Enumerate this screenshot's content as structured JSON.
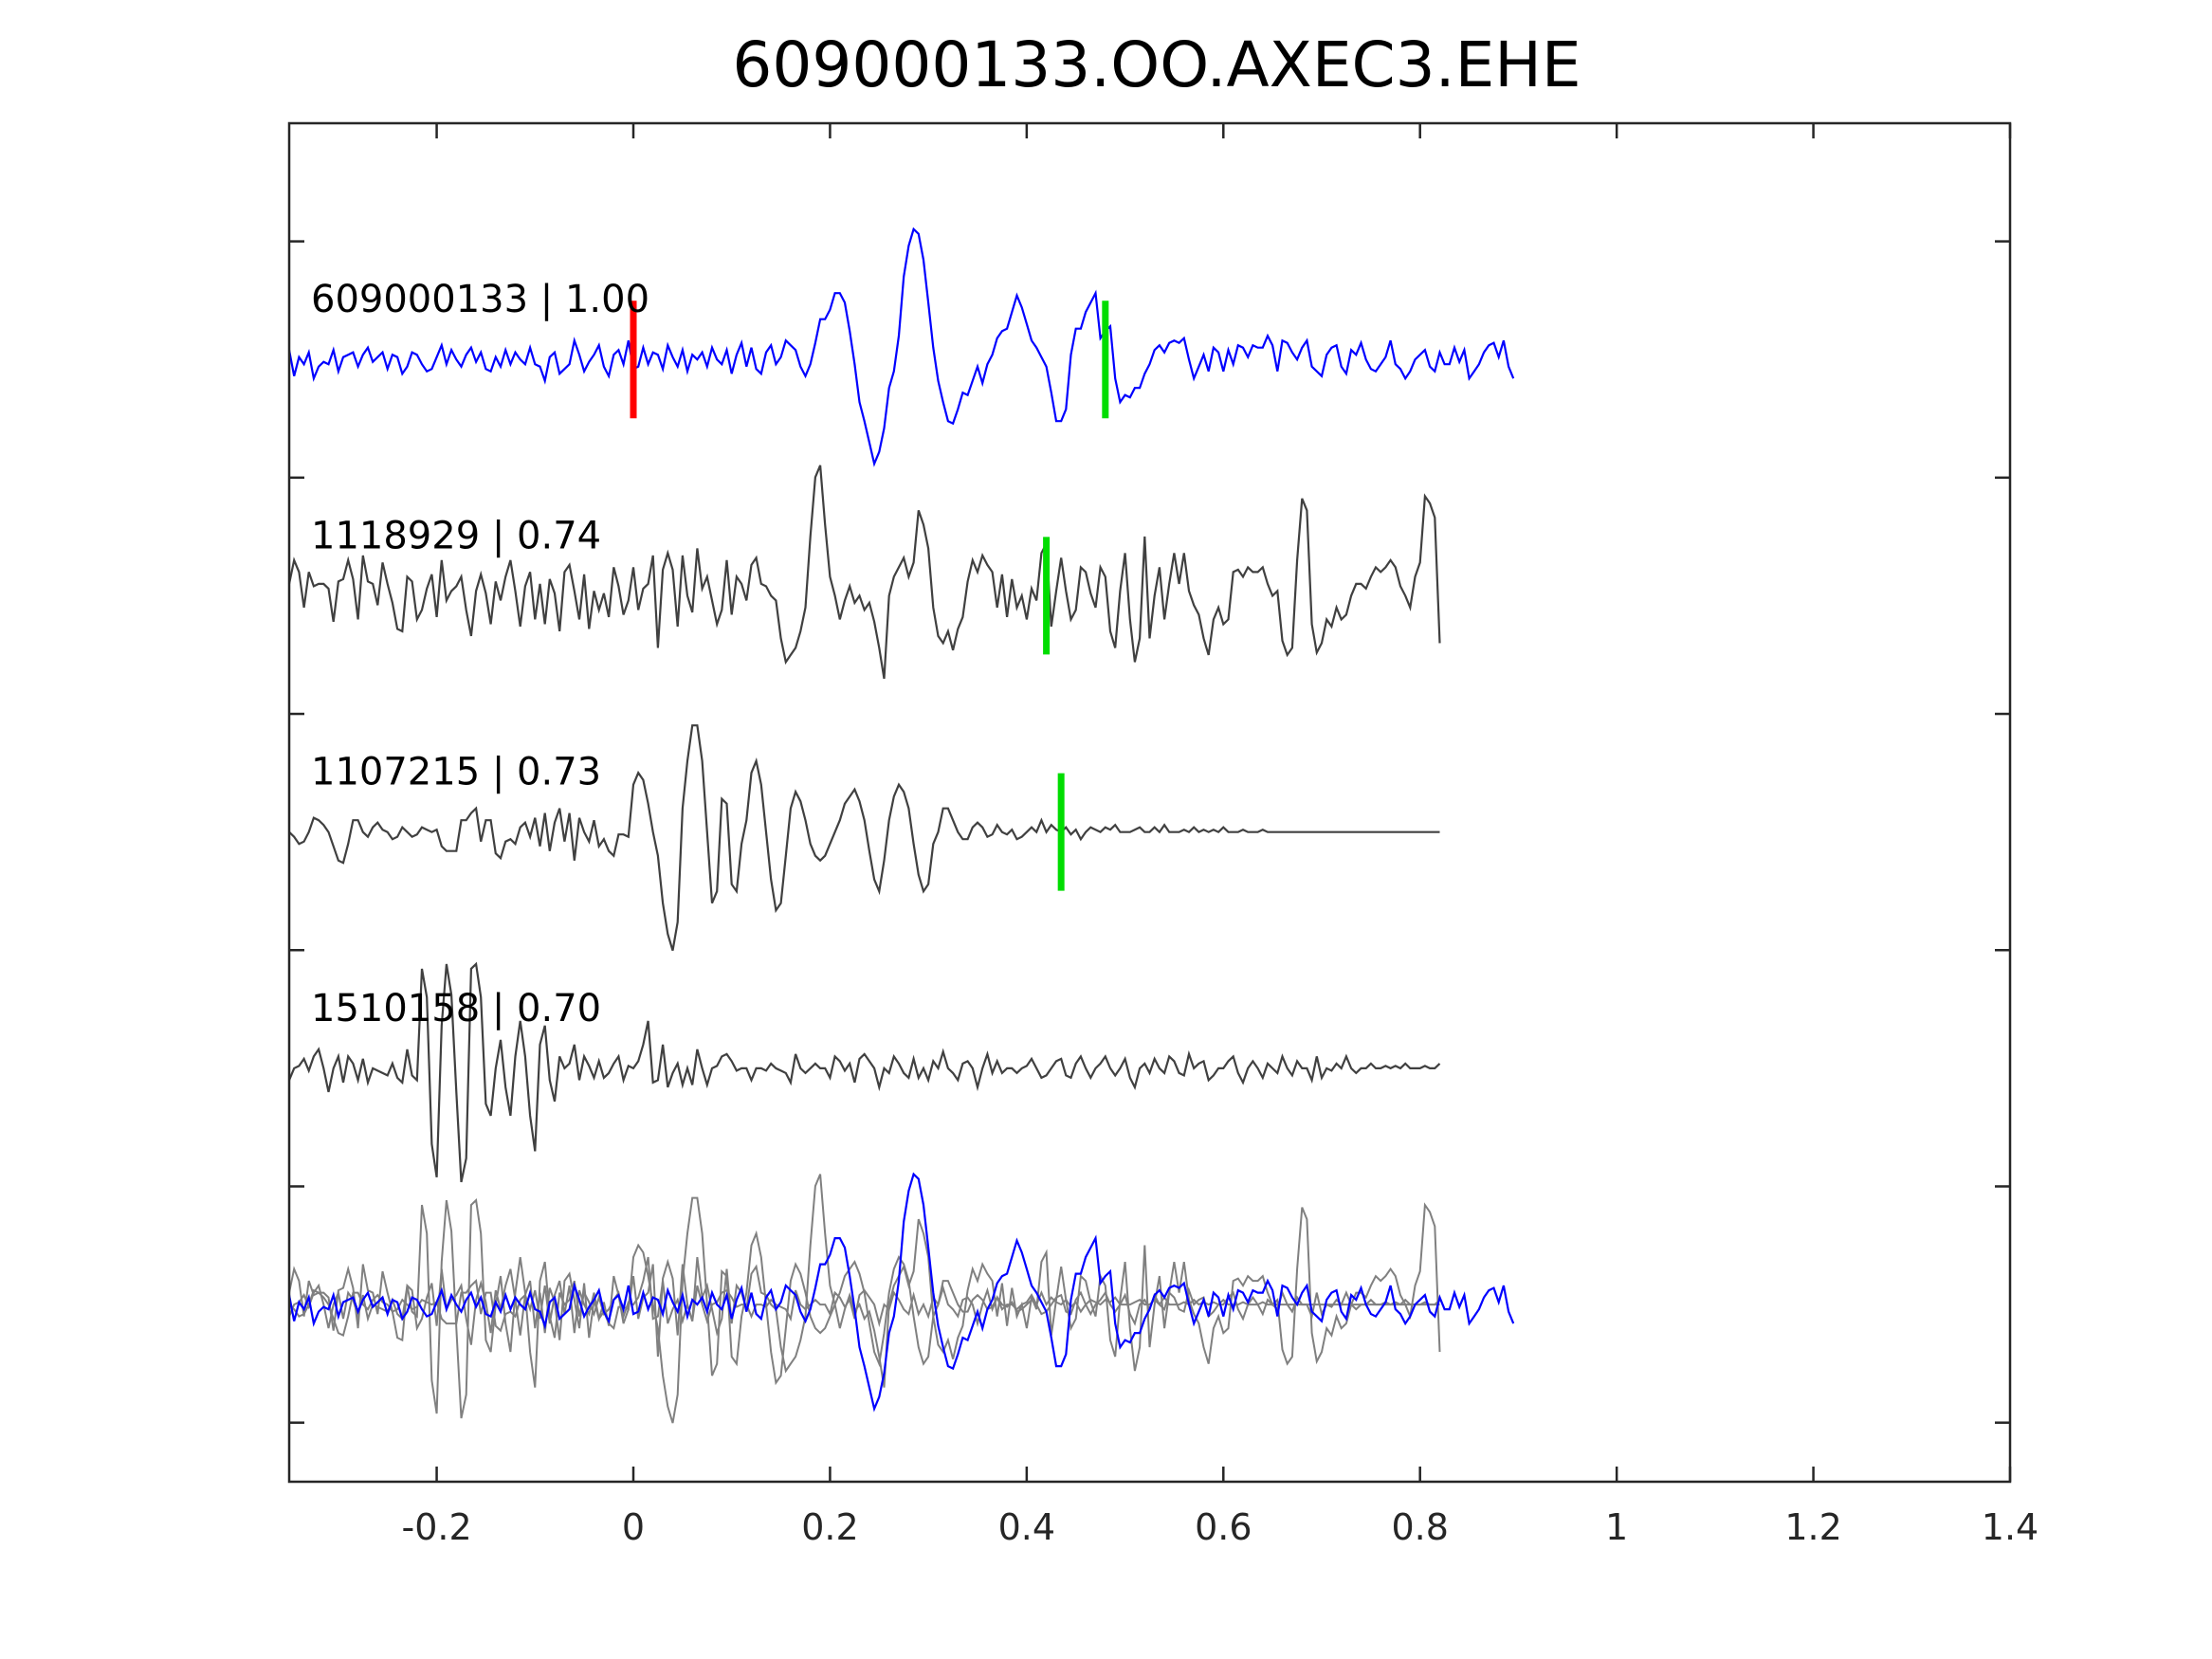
{
  "chart_data": {
    "type": "line",
    "title": "609000133.OO.AXEC3.EHE",
    "xlabel": "",
    "ylabel": "",
    "xlim": [
      -0.35,
      1.4
    ],
    "x_ticks": [
      -0.2,
      0,
      0.2,
      0.4,
      0.6,
      0.8,
      1,
      1.2,
      1.4
    ],
    "x_tick_labels": [
      "-0.2",
      "0",
      "0.2",
      "0.4",
      "0.6",
      "0.8",
      "1",
      "1.2",
      "1.4"
    ],
    "ylim": [
      0,
      5.75
    ],
    "y_ticks": [
      0.25,
      1.25,
      2.25,
      3.25,
      4.25,
      5.25
    ],
    "y_tick_labels": [
      "",
      "",
      "",
      "",
      "",
      ""
    ],
    "grid": false,
    "sample_dt": 0.005,
    "colors": {
      "target": "#0000ff",
      "match": "#404040",
      "overlay_match": "#808080",
      "red_pick": "#ff0000",
      "green_pick": "#00dd00"
    },
    "series": [
      {
        "name": "609000133 | 1.00",
        "baseline": 4.75,
        "color": "#0000ff",
        "role": "target",
        "picks": [
          {
            "t": 0.0,
            "color": "#ff0000"
          },
          {
            "t": 0.48,
            "color": "#00dd00"
          }
        ],
        "y": [
          0.04,
          -0.07,
          0.01,
          -0.02,
          0.03,
          -0.08,
          -0.03,
          -0.01,
          -0.02,
          0.04,
          -0.05,
          0.01,
          0.02,
          0.03,
          -0.03,
          0.02,
          0.05,
          -0.01,
          0.01,
          0.03,
          -0.04,
          0.02,
          0.01,
          -0.06,
          -0.03,
          0.03,
          0.02,
          -0.02,
          -0.05,
          -0.04,
          0.01,
          0.06,
          -0.02,
          0.04,
          0.0,
          -0.03,
          0.02,
          0.05,
          -0.01,
          0.03,
          -0.04,
          -0.05,
          0.01,
          -0.03,
          0.04,
          -0.02,
          0.03,
          0.0,
          -0.02,
          0.05,
          -0.02,
          -0.03,
          -0.09,
          0.01,
          0.03,
          -0.06,
          -0.04,
          -0.02,
          0.08,
          0.02,
          -0.05,
          -0.01,
          0.02,
          0.06,
          -0.03,
          -0.07,
          0.02,
          0.04,
          -0.02,
          0.08,
          -0.04,
          -0.03,
          0.05,
          -0.02,
          0.03,
          0.02,
          -0.04,
          0.06,
          0.01,
          -0.03,
          0.04,
          -0.05,
          0.02,
          0.0,
          0.03,
          -0.03,
          0.05,
          0.0,
          -0.02,
          0.04,
          -0.06,
          0.02,
          0.07,
          -0.03,
          0.05,
          -0.04,
          -0.06,
          0.03,
          0.06,
          -0.02,
          0.01,
          0.08,
          0.06,
          0.04,
          -0.03,
          -0.07,
          -0.02,
          0.07,
          0.17,
          0.17,
          0.21,
          0.28,
          0.28,
          0.24,
          0.12,
          -0.02,
          -0.18,
          -0.26,
          -0.35,
          -0.44,
          -0.39,
          -0.29,
          -0.12,
          -0.05,
          0.1,
          0.35,
          0.48,
          0.55,
          0.53,
          0.42,
          0.24,
          0.05,
          -0.09,
          -0.18,
          -0.26,
          -0.27,
          -0.21,
          -0.14,
          -0.15,
          -0.09,
          -0.03,
          -0.1,
          -0.02,
          0.02,
          0.09,
          0.12,
          0.13,
          0.2,
          0.27,
          0.22,
          0.15,
          0.08,
          0.05,
          0.01,
          -0.03,
          -0.14,
          -0.26,
          -0.26,
          -0.21,
          0.02,
          0.13,
          0.13,
          0.2,
          0.24,
          0.28,
          0.09,
          0.12,
          0.14,
          -0.08,
          -0.18,
          -0.15,
          -0.16,
          -0.12,
          -0.12,
          -0.06,
          -0.02,
          0.04,
          0.06,
          0.03,
          0.07,
          0.08,
          0.07,
          0.09,
          0.0,
          -0.08,
          -0.03,
          0.02,
          -0.05,
          0.05,
          0.03,
          -0.05,
          0.04,
          -0.02,
          0.06,
          0.05,
          0.01,
          0.06,
          0.05,
          0.05,
          0.1,
          0.06,
          -0.05,
          0.08,
          0.07,
          0.03,
          0.0,
          0.05,
          0.08,
          -0.03,
          -0.05,
          -0.07,
          0.02,
          0.05,
          0.06,
          -0.03,
          -0.06,
          0.04,
          0.02,
          0.07,
          0.0,
          -0.04,
          -0.05,
          -0.02,
          0.01,
          0.08,
          -0.02,
          -0.04,
          -0.08,
          -0.05,
          0.0,
          0.02,
          0.04,
          -0.03,
          -0.05,
          0.03,
          -0.02,
          -0.02,
          0.05,
          -0.01,
          0.04,
          -0.08,
          -0.05,
          -0.02,
          0.03,
          0.06,
          0.07,
          0.01,
          0.08,
          -0.03,
          -0.08
        ]
      },
      {
        "name": "1118929 | 0.74",
        "baseline": 3.75,
        "color": "#404040",
        "role": "match",
        "picks": [
          {
            "t": 0.42,
            "color": "#00dd00"
          }
        ],
        "y": [
          0.05,
          0.15,
          0.1,
          -0.05,
          0.1,
          0.04,
          0.05,
          0.05,
          0.03,
          -0.11,
          0.06,
          0.07,
          0.15,
          0.07,
          -0.1,
          0.17,
          0.06,
          0.05,
          -0.04,
          0.14,
          0.05,
          -0.03,
          -0.14,
          -0.15,
          0.08,
          0.06,
          -0.1,
          -0.06,
          0.03,
          0.09,
          -0.09,
          0.15,
          -0.02,
          0.02,
          0.04,
          0.08,
          -0.06,
          -0.17,
          0.02,
          0.09,
          0.01,
          -0.12,
          0.06,
          -0.02,
          0.08,
          0.15,
          0.02,
          -0.13,
          0.04,
          0.1,
          -0.1,
          0.05,
          -0.12,
          0.07,
          0.01,
          -0.15,
          0.1,
          0.13,
          0.02,
          -0.1,
          0.09,
          -0.14,
          0.02,
          -0.06,
          0.01,
          -0.09,
          0.12,
          0.04,
          -0.08,
          -0.02,
          0.12,
          -0.06,
          0.03,
          0.05,
          0.17,
          -0.22,
          0.11,
          0.18,
          0.11,
          -0.13,
          0.17,
          0.0,
          -0.07,
          0.2,
          0.03,
          0.08,
          -0.02,
          -0.12,
          -0.06,
          0.15,
          -0.08,
          0.08,
          0.05,
          -0.02,
          0.13,
          0.16,
          0.05,
          0.04,
          0.0,
          -0.02,
          -0.18,
          -0.28,
          -0.25,
          -0.22,
          -0.15,
          -0.05,
          0.25,
          0.5,
          0.55,
          0.3,
          0.08,
          0.0,
          -0.1,
          -0.02,
          0.04,
          -0.03,
          0.0,
          -0.06,
          -0.03,
          -0.11,
          -0.22,
          -0.35,
          0.0,
          0.08,
          0.12,
          0.16,
          0.08,
          0.14,
          0.36,
          0.3,
          0.2,
          -0.05,
          -0.17,
          -0.2,
          -0.15,
          -0.23,
          -0.14,
          -0.09,
          0.06,
          0.15,
          0.1,
          0.17,
          0.13,
          0.1,
          -0.05,
          0.09,
          -0.09,
          0.07,
          -0.05,
          0.0,
          -0.1,
          0.03,
          -0.02,
          0.18,
          0.22,
          -0.13,
          0.02,
          0.16,
          0.02,
          -0.1,
          -0.06,
          0.12,
          0.1,
          0.01,
          -0.05,
          0.12,
          0.08,
          -0.15,
          -0.22,
          0.02,
          0.18,
          -0.1,
          -0.28,
          -0.18,
          0.25,
          -0.18,
          0.0,
          0.12,
          -0.1,
          0.05,
          0.18,
          0.05,
          0.18,
          0.02,
          -0.04,
          -0.08,
          -0.18,
          -0.25,
          -0.1,
          -0.05,
          -0.12,
          -0.1,
          0.1,
          0.11,
          0.08,
          0.12,
          0.1,
          0.1,
          0.12,
          0.05,
          0.0,
          0.02,
          -0.19,
          -0.25,
          -0.22,
          0.15,
          0.41,
          0.36,
          -0.12,
          -0.24,
          -0.2,
          -0.1,
          -0.13,
          -0.05,
          -0.1,
          -0.08,
          0.0,
          0.05,
          0.05,
          0.03,
          0.08,
          0.12,
          0.1,
          0.12,
          0.15,
          0.12,
          0.04,
          0.0,
          -0.05,
          0.08,
          0.14,
          0.42,
          0.39,
          0.33,
          -0.2
        ]
      },
      {
        "name": "1107215 | 0.73",
        "baseline": 2.75,
        "color": "#404040",
        "role": "match",
        "picks": [
          {
            "t": 0.435,
            "color": "#00dd00"
          }
        ],
        "y": [
          0.0,
          -0.02,
          -0.05,
          -0.04,
          0.0,
          0.06,
          0.05,
          0.03,
          0.0,
          -0.06,
          -0.12,
          -0.13,
          -0.05,
          0.05,
          0.05,
          0.0,
          -0.02,
          0.02,
          0.04,
          0.01,
          0.0,
          -0.03,
          -0.02,
          0.02,
          0.0,
          -0.02,
          -0.01,
          0.02,
          0.01,
          0.0,
          0.01,
          -0.06,
          -0.08,
          -0.08,
          -0.08,
          0.05,
          0.05,
          0.08,
          0.1,
          -0.04,
          0.05,
          0.05,
          -0.09,
          -0.11,
          -0.04,
          -0.03,
          -0.05,
          0.02,
          0.04,
          -0.02,
          0.06,
          -0.06,
          0.08,
          -0.08,
          0.04,
          0.1,
          -0.04,
          0.08,
          -0.12,
          0.06,
          0.0,
          -0.04,
          0.05,
          -0.06,
          -0.03,
          -0.08,
          -0.1,
          -0.01,
          -0.01,
          -0.02,
          0.2,
          0.25,
          0.22,
          0.12,
          0.0,
          -0.1,
          -0.3,
          -0.43,
          -0.5,
          -0.38,
          0.1,
          0.3,
          0.45,
          0.45,
          0.3,
          0.0,
          -0.3,
          -0.25,
          0.14,
          0.12,
          -0.22,
          -0.25,
          -0.05,
          0.05,
          0.25,
          0.3,
          0.2,
          0.0,
          -0.2,
          -0.33,
          -0.3,
          -0.1,
          0.1,
          0.17,
          0.13,
          0.05,
          -0.05,
          -0.1,
          -0.12,
          -0.1,
          -0.05,
          0.0,
          0.05,
          0.12,
          0.15,
          0.18,
          0.13,
          0.05,
          -0.08,
          -0.2,
          -0.25,
          -0.12,
          0.05,
          0.15,
          0.2,
          0.17,
          0.1,
          -0.05,
          -0.18,
          -0.25,
          -0.22,
          -0.05,
          0.0,
          0.1,
          0.1,
          0.05,
          0.0,
          -0.03,
          -0.03,
          0.02,
          0.04,
          0.02,
          -0.02,
          -0.01,
          0.03,
          0.0,
          -0.01,
          0.01,
          -0.03,
          -0.02,
          0.0,
          0.02,
          0.0,
          0.05,
          0.0,
          0.03,
          0.01,
          0.0,
          0.02,
          -0.01,
          0.01,
          -0.03,
          0.0,
          0.02,
          0.01,
          0.0,
          0.02,
          0.01,
          0.03,
          0.0,
          0.0,
          0.0,
          0.01,
          0.02,
          0.0,
          0.0,
          0.02,
          0.0,
          0.03,
          0.0,
          0.0,
          0.0,
          0.01,
          0.0,
          0.02,
          0.0,
          0.01,
          0.0,
          0.01,
          0.0,
          0.02,
          0.0,
          0.0,
          0.0,
          0.01,
          0.0,
          0.0,
          0.0,
          0.01,
          0.0,
          0.0,
          0.0,
          0.0,
          0.0,
          0.0,
          0.0,
          0.0,
          0.0,
          0.0,
          0.0,
          0.0,
          0.0,
          0.0,
          0.0,
          0.0,
          0.0,
          0.0,
          0.0,
          0.0,
          0.0,
          0.0,
          0.0,
          0.0,
          0.0,
          0.0,
          0.0,
          0.0,
          0.0,
          0.0,
          0.0,
          0.0,
          0.0,
          0.0,
          0.0,
          0.0
        ]
      },
      {
        "name": "1510158 | 0.70",
        "baseline": 1.75,
        "color": "#404040",
        "role": "match",
        "picks": [],
        "y": [
          -0.05,
          0.0,
          0.01,
          0.04,
          -0.01,
          0.05,
          0.08,
          0.0,
          -0.1,
          0.0,
          0.05,
          -0.06,
          0.05,
          0.02,
          -0.05,
          0.04,
          -0.06,
          0.0,
          -0.01,
          -0.02,
          -0.03,
          0.02,
          -0.04,
          -0.06,
          0.08,
          -0.03,
          -0.05,
          0.42,
          0.3,
          -0.32,
          -0.46,
          0.18,
          0.44,
          0.31,
          -0.1,
          -0.48,
          -0.38,
          0.42,
          0.44,
          0.3,
          -0.15,
          -0.2,
          0.0,
          0.12,
          -0.08,
          -0.2,
          0.05,
          0.2,
          0.05,
          -0.2,
          -0.35,
          0.1,
          0.18,
          -0.05,
          -0.14,
          0.05,
          0.0,
          0.02,
          0.1,
          -0.05,
          0.05,
          0.01,
          -0.04,
          0.03,
          -0.04,
          -0.02,
          0.02,
          0.05,
          -0.05,
          0.01,
          0.0,
          0.03,
          0.1,
          0.2,
          -0.06,
          -0.05,
          0.1,
          -0.08,
          -0.02,
          0.02,
          -0.07,
          0.0,
          -0.07,
          0.08,
          0.0,
          -0.07,
          0.0,
          0.01,
          0.05,
          0.06,
          0.03,
          -0.01,
          0.0,
          0.0,
          -0.05,
          0.0,
          0.0,
          -0.01,
          0.02,
          0.0,
          -0.01,
          -0.02,
          -0.06,
          0.06,
          0.0,
          -0.02,
          0.0,
          0.02,
          0.0,
          0.0,
          -0.04,
          0.05,
          0.03,
          -0.01,
          0.02,
          -0.06,
          0.04,
          0.06,
          0.03,
          0.0,
          -0.08,
          0.0,
          -0.02,
          0.05,
          0.02,
          -0.02,
          -0.04,
          0.04,
          -0.04,
          0.0,
          -0.05,
          0.03,
          0.0,
          0.07,
          0.0,
          -0.02,
          -0.05,
          0.02,
          0.03,
          0.0,
          -0.08,
          0.0,
          0.06,
          -0.02,
          0.03,
          -0.02,
          0.0,
          0.0,
          -0.02,
          0.0,
          0.01,
          0.04,
          0.0,
          -0.04,
          -0.03,
          0.0,
          0.03,
          0.04,
          -0.03,
          -0.04,
          0.02,
          0.05,
          0.0,
          -0.04,
          0.0,
          0.02,
          0.05,
          0.0,
          -0.03,
          0.0,
          0.04,
          -0.04,
          -0.08,
          0.0,
          0.02,
          -0.02,
          0.04,
          0.0,
          -0.02,
          0.05,
          0.03,
          -0.02,
          -0.03,
          0.06,
          0.0,
          0.02,
          0.03,
          -0.05,
          -0.03,
          0.0,
          0.0,
          0.03,
          0.05,
          -0.02,
          -0.06,
          0.0,
          0.03,
          0.0,
          -0.04,
          0.02,
          0.0,
          -0.02,
          0.05,
          0.0,
          -0.03,
          0.03,
          0.0,
          0.0,
          -0.05,
          0.05,
          -0.04,
          0.0,
          -0.01,
          0.02,
          0.0,
          0.05,
          0.0,
          -0.02,
          0.0,
          0.0,
          0.02,
          0.0,
          0.0,
          0.01,
          0.0,
          0.01,
          0.0,
          0.02,
          0.0,
          0.0,
          0.0,
          0.01,
          0.0,
          0.0,
          0.02
        ]
      }
    ],
    "overlay_baseline": 0.75
  }
}
